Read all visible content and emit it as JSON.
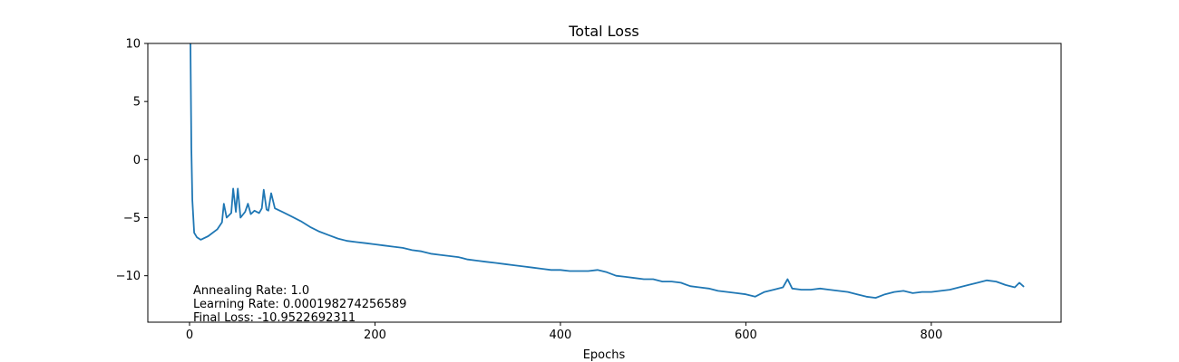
{
  "chart_data": {
    "type": "line",
    "title": "Total Loss",
    "xlabel": "Epochs",
    "ylabel": "",
    "xlim": [
      -45,
      940
    ],
    "ylim": [
      -14,
      10
    ],
    "x_ticks": [
      0,
      200,
      400,
      600,
      800
    ],
    "y_ticks": [
      10,
      5,
      0,
      -5,
      -10
    ],
    "grid": false,
    "legend": "none",
    "colors": {
      "line": "#1f77b4",
      "axes": "#000000",
      "background": "#ffffff"
    },
    "annotations": [
      "Annealing Rate: 1.0",
      "Learning Rate: 0.000198274256589",
      "Final Loss: -10.9522692311"
    ],
    "series": [
      {
        "x": [
          0,
          1,
          2,
          3,
          5,
          8,
          12,
          20,
          30,
          35,
          37,
          40,
          45,
          47,
          50,
          52,
          55,
          60,
          63,
          66,
          70,
          75,
          78,
          80,
          83,
          85,
          88,
          92,
          100,
          110,
          120,
          130,
          140,
          150,
          160,
          170,
          180,
          190,
          200,
          210,
          220,
          230,
          240,
          250,
          260,
          270,
          280,
          290,
          300,
          310,
          320,
          330,
          340,
          350,
          360,
          370,
          380,
          390,
          400,
          410,
          420,
          430,
          440,
          450,
          460,
          470,
          480,
          490,
          500,
          510,
          520,
          530,
          540,
          550,
          560,
          570,
          580,
          590,
          600,
          610,
          620,
          630,
          640,
          645,
          650,
          660,
          670,
          680,
          690,
          700,
          710,
          720,
          730,
          740,
          750,
          760,
          770,
          780,
          790,
          800,
          810,
          820,
          830,
          840,
          850,
          860,
          870,
          880,
          890,
          895,
          900
        ],
        "y": [
          10,
          10,
          1.0,
          -3.5,
          -6.3,
          -6.7,
          -6.9,
          -6.6,
          -6.0,
          -5.4,
          -3.8,
          -5.0,
          -4.6,
          -2.5,
          -4.5,
          -2.5,
          -5.0,
          -4.5,
          -3.8,
          -4.7,
          -4.4,
          -4.6,
          -4.2,
          -2.6,
          -4.3,
          -4.4,
          -2.9,
          -4.2,
          -4.5,
          -4.9,
          -5.3,
          -5.8,
          -6.2,
          -6.5,
          -6.8,
          -7.0,
          -7.1,
          -7.2,
          -7.3,
          -7.4,
          -7.5,
          -7.6,
          -7.8,
          -7.9,
          -8.1,
          -8.2,
          -8.3,
          -8.4,
          -8.6,
          -8.7,
          -8.8,
          -8.9,
          -9.0,
          -9.1,
          -9.2,
          -9.3,
          -9.4,
          -9.5,
          -9.5,
          -9.6,
          -9.6,
          -9.6,
          -9.5,
          -9.7,
          -10.0,
          -10.1,
          -10.2,
          -10.3,
          -10.3,
          -10.5,
          -10.5,
          -10.6,
          -10.9,
          -11.0,
          -11.1,
          -11.3,
          -11.4,
          -11.5,
          -11.6,
          -11.8,
          -11.4,
          -11.2,
          -11.0,
          -10.3,
          -11.1,
          -11.2,
          -11.2,
          -11.1,
          -11.2,
          -11.3,
          -11.4,
          -11.6,
          -11.8,
          -11.9,
          -11.6,
          -11.4,
          -11.3,
          -11.5,
          -11.4,
          -11.4,
          -11.3,
          -11.2,
          -11.0,
          -10.8,
          -10.6,
          -10.4,
          -10.5,
          -10.8,
          -11.0,
          -10.6,
          -10.95
        ]
      }
    ]
  }
}
